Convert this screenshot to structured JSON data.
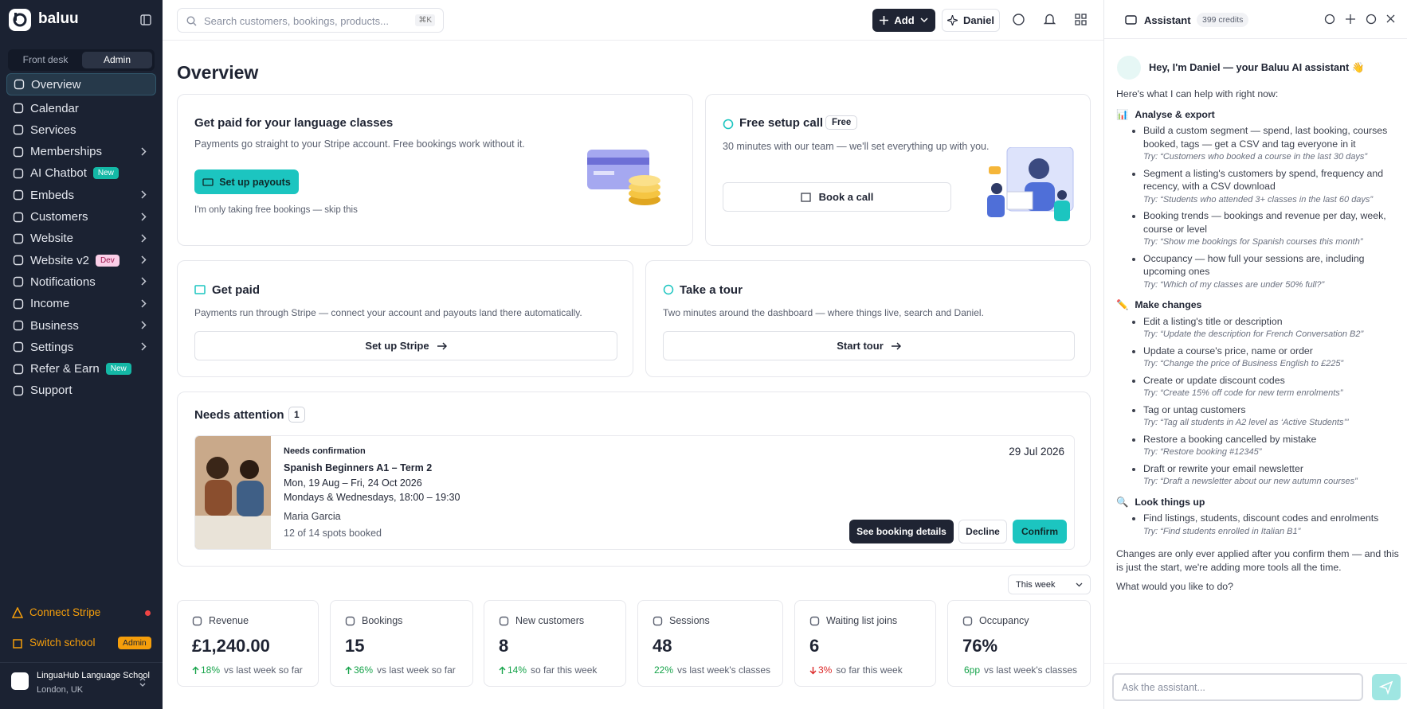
{
  "sidebar": {
    "brand": "baluu",
    "tabs": [
      "Front desk",
      "Admin"
    ],
    "nav": [
      {
        "label": "Overview",
        "active": true
      },
      {
        "label": "Calendar"
      },
      {
        "label": "Services"
      },
      {
        "label": "Memberships",
        "expandable": true
      },
      {
        "label": "AI Chatbot",
        "badge": "New"
      },
      {
        "label": "Embeds",
        "expandable": true
      },
      {
        "label": "Customers",
        "expandable": true
      },
      {
        "label": "Website",
        "expandable": true
      },
      {
        "label": "Website v2",
        "badge": "Dev",
        "expandable": true
      },
      {
        "label": "Notifications",
        "expandable": true
      },
      {
        "label": "Income",
        "expandable": true
      },
      {
        "label": "Business",
        "expandable": true
      },
      {
        "label": "Settings",
        "expandable": true
      },
      {
        "label": "Refer & Earn",
        "badge": "New"
      },
      {
        "label": "Support"
      }
    ],
    "connect_stripe": "Connect Stripe",
    "switch_school": "Switch school",
    "switch_badge": "Admin",
    "school": {
      "name": "LinguaHub Language School",
      "location": "London, UK"
    }
  },
  "topbar": {
    "search": "Search customers, bookings, products...",
    "shortcut": "⌘K",
    "add": "Add",
    "user": "Daniel"
  },
  "main": {
    "title": "Overview",
    "setup_card": {
      "title": "Get paid for your language classes",
      "text": "Payments go straight to your Stripe account. Free bookings work without it.",
      "button": "Set up payouts",
      "skip": "I'm only taking free bookings — skip this"
    },
    "call_card": {
      "title": "Free setup call",
      "badge": "Free",
      "text": "30 minutes with our team — we'll set everything up with you.",
      "button": "Book a call"
    },
    "get_paid": {
      "title": "Get paid",
      "text": "Payments run through Stripe — connect your account and payouts land there automatically.",
      "button": "Set up Stripe"
    },
    "tour": {
      "title": "Take a tour",
      "text": "Two minutes around the dashboard — where things live, search and Daniel.",
      "button": "Start tour"
    },
    "attention": {
      "title": "Needs attention",
      "count": 1,
      "status": "Needs confirmation",
      "course": "Spanish Beginners A1 – Term 2",
      "dates": "Mon, 19 Aug – Fri, 24 Oct 2026",
      "schedule": "Mondays & Wednesdays, 18:00 – 19:30",
      "customer": "Maria Garcia",
      "spots": "12 of 14 spots booked",
      "date": "29 Jul 2026",
      "actions": [
        "See booking details",
        "Decline",
        "Confirm"
      ]
    },
    "period": "This week",
    "stats": [
      {
        "label": "Revenue",
        "value": "£1,240.00",
        "change": "18%",
        "trend": "up",
        "note": "vs last week so far"
      },
      {
        "label": "Bookings",
        "value": "15",
        "change": "36%",
        "trend": "up",
        "note": "vs last week so far"
      },
      {
        "label": "New customers",
        "value": "8",
        "change": "14%",
        "trend": "up",
        "note": "so far this week"
      },
      {
        "label": "Sessions",
        "value": "48",
        "change": "22%",
        "trend": "up",
        "note": "vs last week's classes"
      },
      {
        "label": "Waiting list joins",
        "value": "6",
        "change": "3%",
        "trend": "down",
        "note": "so far this week"
      },
      {
        "label": "Occupancy",
        "value": "76%",
        "change": "6pp",
        "trend": "up",
        "note": "vs last week's classes"
      }
    ]
  },
  "assistant": {
    "title": "Assistant",
    "credits": "399 credits",
    "greeting": "Hey, I'm Daniel — your Baluu AI assistant 👋",
    "intro": "Here's what I can help with right now:",
    "sections": [
      {
        "icon": "📊",
        "heading": "Analyse & export",
        "items": [
          {
            "text": "Build a custom segment — spend, last booking, courses booked, tags — get a CSV and tag everyone in it",
            "try": "Try: “Customers who booked a course in the last 30 days”"
          },
          {
            "text": "Segment a listing's customers by spend, frequency and recency, with a CSV download",
            "try": "Try: “Students who attended 3+ classes in the last 60 days”"
          },
          {
            "text": "Booking trends — bookings and revenue per day, week, course or level",
            "try": "Try: “Show me bookings for Spanish courses this month”"
          },
          {
            "text": "Occupancy — how full your sessions are, including upcoming ones",
            "try": "Try: “Which of my classes are under 50% full?”"
          }
        ]
      },
      {
        "icon": "✏️",
        "heading": "Make changes",
        "items": [
          {
            "text": "Edit a listing's title or description",
            "try": "Try: “Update the description for French Conversation B2”"
          },
          {
            "text": "Update a course's price, name or order",
            "try": "Try: “Change the price of Business English to £225”"
          },
          {
            "text": "Create or update discount codes",
            "try": "Try: “Create 15% off code for new term enrolments”"
          },
          {
            "text": "Tag or untag customers",
            "try": "Try: “Tag all students in A2 level as ‘Active Students’”"
          },
          {
            "text": "Restore a booking cancelled by mistake",
            "try": "Try: “Restore booking #12345”"
          },
          {
            "text": "Draft or rewrite your email newsletter",
            "try": "Try: “Draft a newsletter about our new autumn courses”"
          }
        ]
      },
      {
        "icon": "🔍",
        "heading": "Look things up",
        "items": [
          {
            "text": "Find listings, students, discount codes and enrolments",
            "try": "Try: “Find students enrolled in Italian B1”"
          }
        ]
      }
    ],
    "outro": "Changes are only ever applied after you confirm them — and this is just the start, we're adding more tools all the time.",
    "question": "What would you like to do?",
    "input": "Ask the assistant..."
  }
}
